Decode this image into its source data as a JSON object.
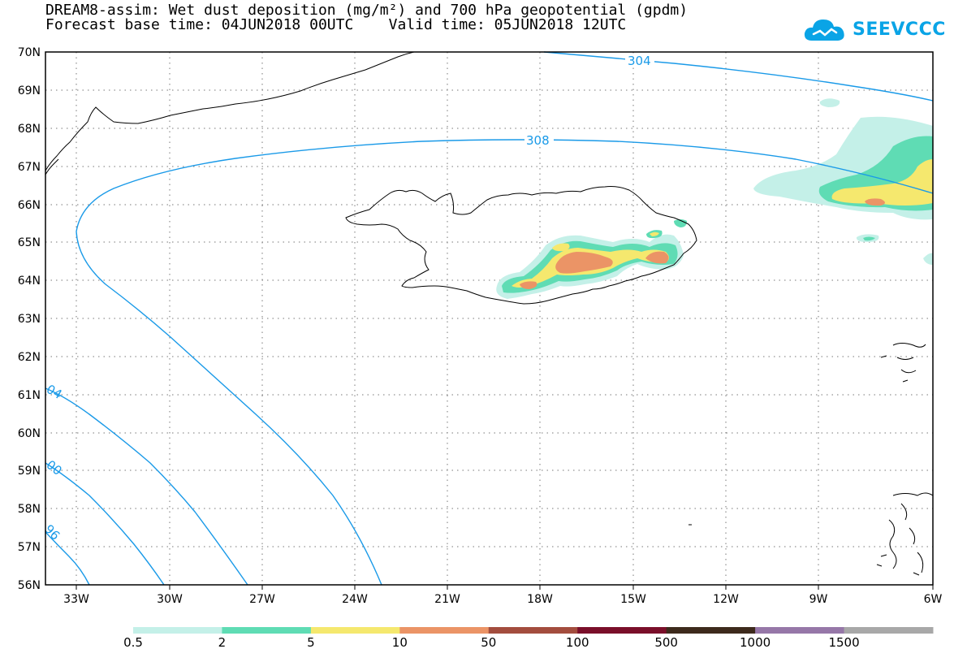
{
  "title": {
    "line1": "DREAM8-assim: Wet dust deposition (mg/m²) and 700 hPa geopotential (gpdm)",
    "line2": "Forecast base time: 04JUN2018 00UTC    Valid time: 05JUN2018 12UTC"
  },
  "logo": {
    "text": "SEEVCCC",
    "icon": "cloud-icon",
    "color": "#0aa4e6"
  },
  "map": {
    "lat_labels": [
      "70N",
      "69N",
      "68N",
      "67N",
      "66N",
      "65N",
      "64N",
      "63N",
      "62N",
      "61N",
      "60N",
      "59N",
      "58N",
      "57N",
      "56N"
    ],
    "lon_labels": [
      "33W",
      "30W",
      "27W",
      "24W",
      "21W",
      "18W",
      "15W",
      "12W",
      "9W",
      "6W"
    ],
    "contour_labels": [
      "304",
      "308",
      "04",
      "00",
      "96"
    ],
    "contour_color": "#1a9ae8"
  },
  "legend": {
    "labels": [
      "0.5",
      "2",
      "5",
      "10",
      "50",
      "100",
      "500",
      "1000",
      "1500"
    ],
    "colors": [
      "#c4f0e8",
      "#5fdcb4",
      "#f5e86e",
      "#eb9466",
      "#a34d3e",
      "#7a0f2a",
      "#3d2a1c",
      "#9677a8",
      "#a8a8a8"
    ]
  }
}
